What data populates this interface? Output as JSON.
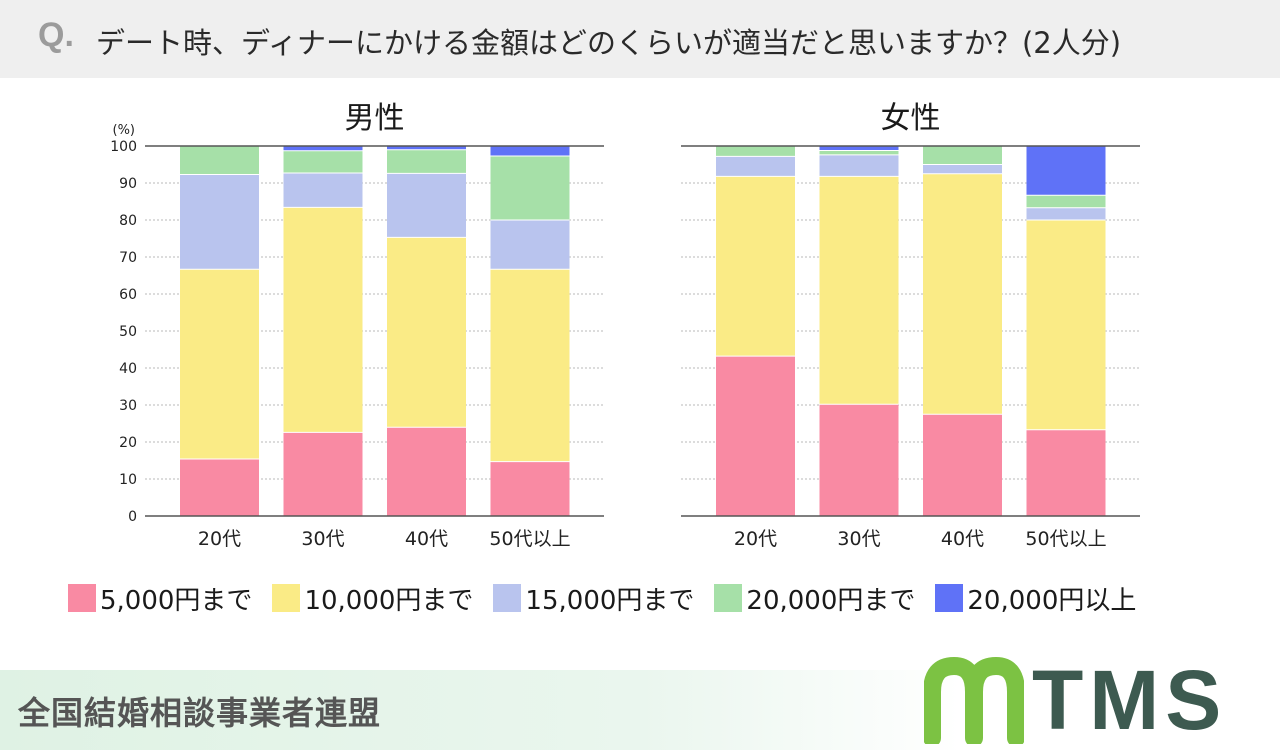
{
  "header": {
    "q_mark": "Q.",
    "question": "デート時、ディナーにかける金額はどのくらいが適当だと思いますか？(2人分)"
  },
  "colors": {
    "5000": "#f98aa3",
    "10000": "#faeb86",
    "15000": "#b9c4ee",
    "20000": "#a6e0a8",
    "over20000": "#5f72f7"
  },
  "legend": [
    {
      "label": "5,000円まで",
      "color": "#f98aa3"
    },
    {
      "label": "10,000円まで",
      "color": "#faeb86"
    },
    {
      "label": "15,000円まで",
      "color": "#b9c4ee"
    },
    {
      "label": "20,000円まで",
      "color": "#a6e0a8"
    },
    {
      "label": "20,000円以上",
      "color": "#5f72f7"
    }
  ],
  "chart_data": [
    {
      "type": "bar",
      "stacked": true,
      "title": "男性",
      "ylabel": "(%)",
      "ylim": [
        0,
        100
      ],
      "yticks": [
        "0",
        "10",
        "20",
        "30",
        "40",
        "50",
        "60",
        "70",
        "80",
        "90",
        "100"
      ],
      "categories": [
        "20代",
        "30代",
        "40代",
        "50代以上"
      ],
      "series": [
        {
          "name": "5,000円まで",
          "color": "#f98aa3",
          "values": [
            15.4,
            22.6,
            24.0,
            14.7
          ]
        },
        {
          "name": "10,000円まで",
          "color": "#faeb86",
          "values": [
            51.3,
            60.8,
            51.3,
            52.0
          ]
        },
        {
          "name": "15,000円まで",
          "color": "#b9c4ee",
          "values": [
            25.6,
            9.3,
            17.3,
            13.3
          ]
        },
        {
          "name": "20,000円まで",
          "color": "#a6e0a8",
          "values": [
            7.7,
            6.0,
            6.4,
            17.3
          ]
        },
        {
          "name": "20,000円以上",
          "color": "#5f72f7",
          "values": [
            0,
            1.3,
            1.0,
            2.7
          ]
        }
      ]
    },
    {
      "type": "bar",
      "stacked": true,
      "title": "女性",
      "ylim": [
        0,
        100
      ],
      "categories": [
        "20代",
        "30代",
        "40代",
        "50代以上"
      ],
      "series": [
        {
          "name": "5,000円まで",
          "color": "#f98aa3",
          "values": [
            43.2,
            30.2,
            27.5,
            23.3
          ]
        },
        {
          "name": "10,000円まで",
          "color": "#faeb86",
          "values": [
            48.6,
            61.6,
            65.0,
            56.7
          ]
        },
        {
          "name": "15,000円まで",
          "color": "#b9c4ee",
          "values": [
            5.4,
            5.8,
            2.5,
            3.3
          ]
        },
        {
          "name": "20,000円まで",
          "color": "#a6e0a8",
          "values": [
            2.8,
            1.2,
            5.0,
            3.4
          ]
        },
        {
          "name": "20,000円以上",
          "color": "#5f72f7",
          "values": [
            0,
            1.2,
            0,
            13.3
          ]
        }
      ]
    }
  ],
  "footer": {
    "organization": "全国結婚相談事業者連盟",
    "logo_text": "TMS",
    "logo_mark_color": "#7cc243",
    "logo_text_color": "#3d5a50"
  }
}
